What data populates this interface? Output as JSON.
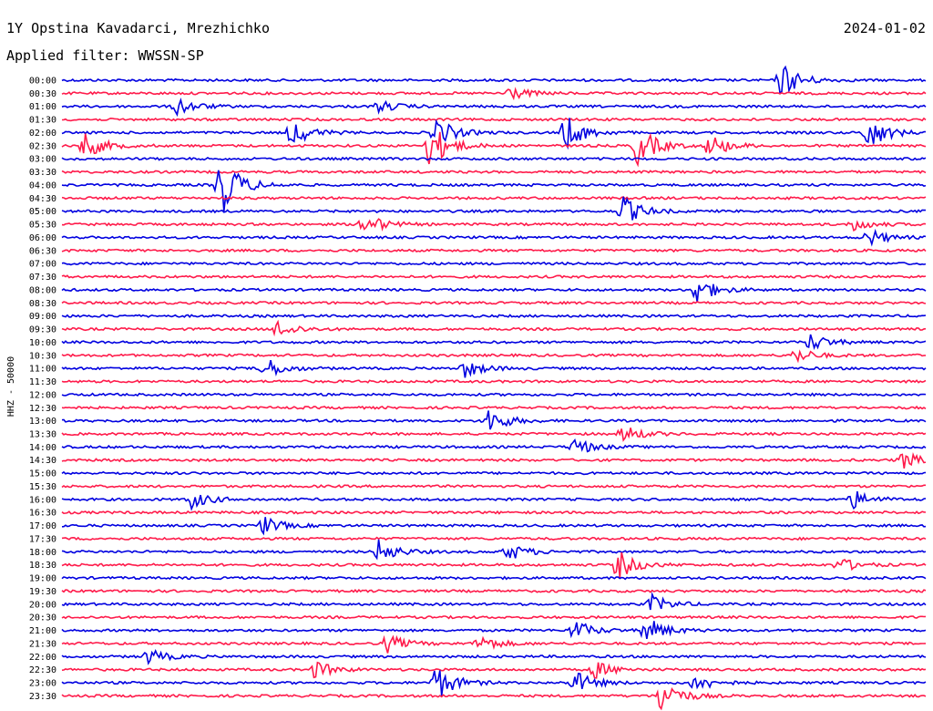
{
  "header": {
    "station": "1Y Opstina Kavadarci, Mrezhichko",
    "date": "2024-01-02",
    "filter": "Applied filter: WWSSN-SP"
  },
  "chart_data": {
    "type": "line",
    "kind": "helicorder",
    "title": "1Y Opstina Kavadarci, Mrezhichko",
    "date": "2024-01-02",
    "filter": "WWSSN-SP",
    "ylabel": "HHZ - 50000",
    "xlabel": "",
    "line_interval_minutes": 30,
    "colors": [
      "#0000e0",
      "#ff1a4a"
    ],
    "grid": false,
    "tick_labels": [
      "00:00",
      "00:30",
      "01:00",
      "01:30",
      "02:00",
      "02:30",
      "03:00",
      "03:30",
      "04:00",
      "04:30",
      "05:00",
      "05:30",
      "06:00",
      "06:30",
      "07:00",
      "07:30",
      "08:00",
      "08:30",
      "09:00",
      "09:30",
      "10:00",
      "10:30",
      "11:00",
      "11:30",
      "12:00",
      "12:30",
      "13:00",
      "13:30",
      "14:00",
      "14:30",
      "15:00",
      "15:30",
      "16:00",
      "16:30",
      "17:00",
      "17:30",
      "18:00",
      "18:30",
      "19:00",
      "19:30",
      "20:00",
      "20:30",
      "21:00",
      "21:30",
      "22:00",
      "22:30",
      "23:00",
      "23:30"
    ],
    "events": [
      {
        "trace": "00:00",
        "minute": 25.0,
        "amplitude": 1.2
      },
      {
        "trace": "00:30",
        "minute": 15.5,
        "amplitude": 0.5
      },
      {
        "trace": "01:00",
        "minute": 4.0,
        "amplitude": 0.6
      },
      {
        "trace": "01:00",
        "minute": 11.0,
        "amplitude": 0.4
      },
      {
        "trace": "02:00",
        "minute": 8.0,
        "amplitude": 0.9
      },
      {
        "trace": "02:00",
        "minute": 13.0,
        "amplitude": 1.0
      },
      {
        "trace": "02:00",
        "minute": 17.5,
        "amplitude": 1.2
      },
      {
        "trace": "02:00",
        "minute": 28.0,
        "amplitude": 1.2
      },
      {
        "trace": "02:30",
        "minute": 0.8,
        "amplitude": 0.9
      },
      {
        "trace": "02:30",
        "minute": 12.8,
        "amplitude": 1.6
      },
      {
        "trace": "02:30",
        "minute": 20.0,
        "amplitude": 1.4
      },
      {
        "trace": "02:30",
        "minute": 22.5,
        "amplitude": 0.8
      },
      {
        "trace": "04:00",
        "minute": 5.5,
        "amplitude": 2.2
      },
      {
        "trace": "05:00",
        "minute": 19.5,
        "amplitude": 1.0
      },
      {
        "trace": "05:30",
        "minute": 10.5,
        "amplitude": 0.8
      },
      {
        "trace": "05:30",
        "minute": 27.5,
        "amplitude": 0.4
      },
      {
        "trace": "06:00",
        "minute": 28.0,
        "amplitude": 0.6
      },
      {
        "trace": "08:00",
        "minute": 22.0,
        "amplitude": 1.0
      },
      {
        "trace": "09:30",
        "minute": 7.5,
        "amplitude": 0.6
      },
      {
        "trace": "10:00",
        "minute": 26.0,
        "amplitude": 0.6
      },
      {
        "trace": "10:30",
        "minute": 25.5,
        "amplitude": 0.5
      },
      {
        "trace": "11:00",
        "minute": 7.0,
        "amplitude": 0.8
      },
      {
        "trace": "11:00",
        "minute": 14.0,
        "amplitude": 0.6
      },
      {
        "trace": "13:00",
        "minute": 14.8,
        "amplitude": 0.9
      },
      {
        "trace": "13:30",
        "minute": 19.5,
        "amplitude": 0.6
      },
      {
        "trace": "14:00",
        "minute": 17.8,
        "amplitude": 0.6
      },
      {
        "trace": "14:30",
        "minute": 29.2,
        "amplitude": 0.6
      },
      {
        "trace": "16:00",
        "minute": 4.5,
        "amplitude": 0.6
      },
      {
        "trace": "16:00",
        "minute": 27.5,
        "amplitude": 0.6
      },
      {
        "trace": "17:00",
        "minute": 7.0,
        "amplitude": 0.6
      },
      {
        "trace": "18:00",
        "minute": 11.0,
        "amplitude": 0.8
      },
      {
        "trace": "18:00",
        "minute": 15.5,
        "amplitude": 0.6
      },
      {
        "trace": "18:30",
        "minute": 19.3,
        "amplitude": 1.0
      },
      {
        "trace": "18:30",
        "minute": 27.0,
        "amplitude": 0.5
      },
      {
        "trace": "20:00",
        "minute": 20.5,
        "amplitude": 0.6
      },
      {
        "trace": "21:00",
        "minute": 17.8,
        "amplitude": 0.7
      },
      {
        "trace": "21:00",
        "minute": 20.3,
        "amplitude": 0.9
      },
      {
        "trace": "21:30",
        "minute": 11.3,
        "amplitude": 0.6
      },
      {
        "trace": "21:30",
        "minute": 14.5,
        "amplitude": 0.6
      },
      {
        "trace": "22:00",
        "minute": 3.0,
        "amplitude": 0.5
      },
      {
        "trace": "22:30",
        "minute": 8.8,
        "amplitude": 0.6
      },
      {
        "trace": "22:30",
        "minute": 18.5,
        "amplitude": 0.6
      },
      {
        "trace": "23:00",
        "minute": 13.0,
        "amplitude": 1.2
      },
      {
        "trace": "23:00",
        "minute": 17.8,
        "amplitude": 0.8
      },
      {
        "trace": "23:00",
        "minute": 22.0,
        "amplitude": 0.6
      },
      {
        "trace": "23:30",
        "minute": 20.8,
        "amplitude": 1.3
      }
    ]
  }
}
